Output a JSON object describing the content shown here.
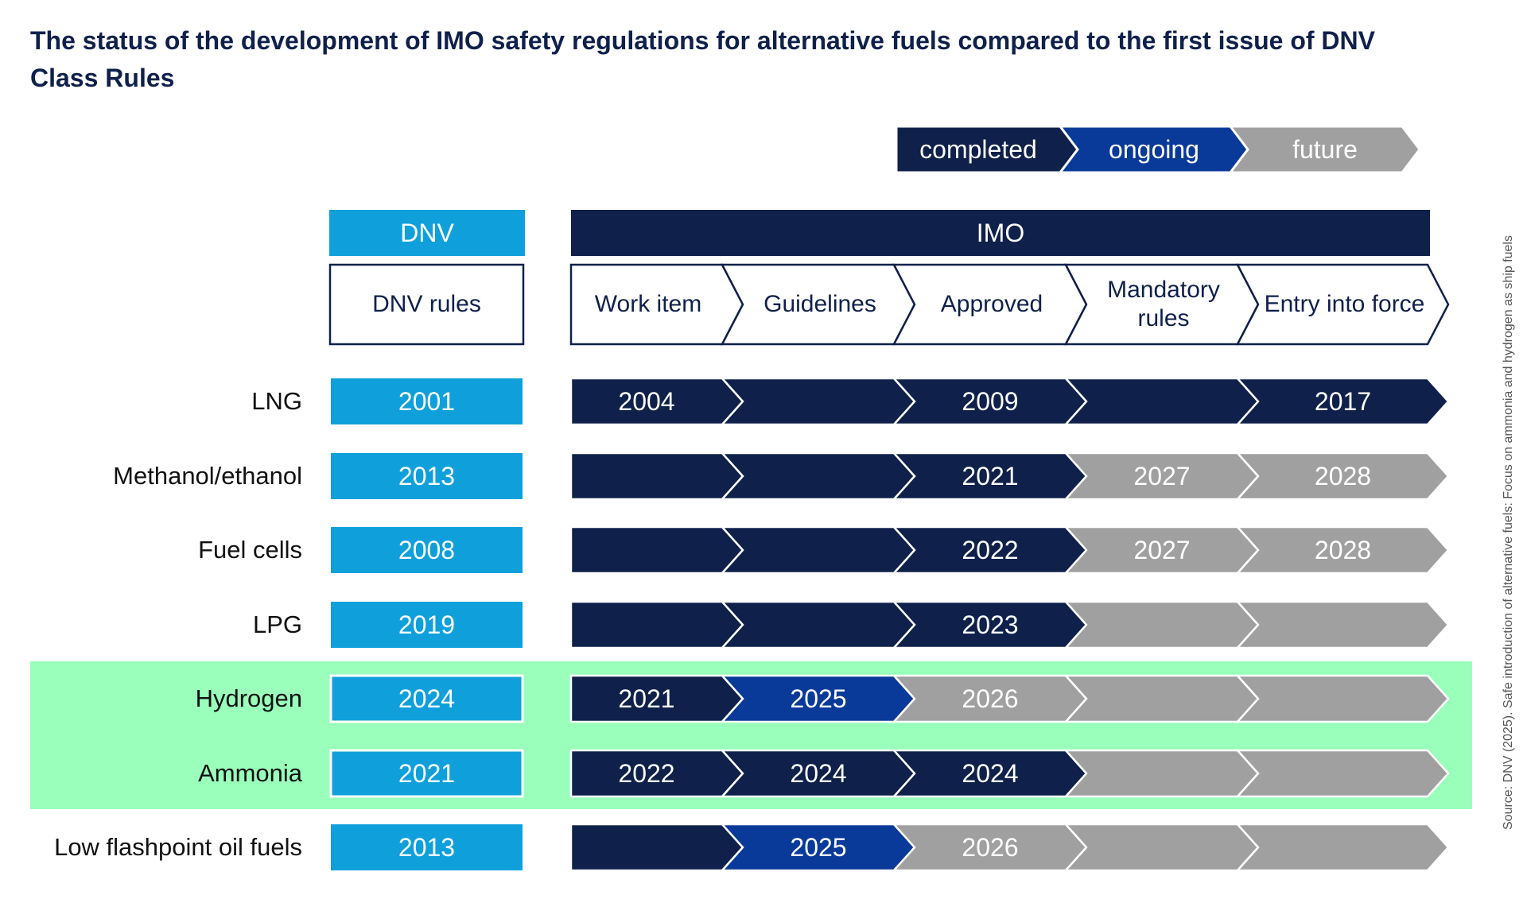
{
  "title": "The status of the development of IMO safety regulations for alternative fuels compared to the first issue of DNV Class Rules",
  "legend": [
    {
      "label": "completed",
      "status": "completed"
    },
    {
      "label": "ongoing",
      "status": "ongoing"
    },
    {
      "label": "future",
      "status": "future"
    }
  ],
  "dnv_header": "DNV",
  "dnv_rules_label": "DNV rules",
  "imo_header": "IMO",
  "imo_steps": [
    "Work item",
    "Guidelines",
    "Approved",
    "Mandatory rules",
    "Entry into force"
  ],
  "colors": {
    "completed": "#0f204b",
    "ongoing": "#0a3a99",
    "future": "#a0a0a0",
    "dnv": "#0fa0dc",
    "highlight": "#99ffbb",
    "title": "#0f204b"
  },
  "rows": [
    {
      "fuel": "LNG",
      "dnv_year": "2001",
      "highlight": false,
      "cells": [
        {
          "year": "2004",
          "status": "completed"
        },
        {
          "year": "",
          "status": "completed"
        },
        {
          "year": "2009",
          "status": "completed"
        },
        {
          "year": "",
          "status": "completed"
        },
        {
          "year": "2017",
          "status": "completed"
        }
      ]
    },
    {
      "fuel": "Methanol/ethanol",
      "dnv_year": "2013",
      "highlight": false,
      "cells": [
        {
          "year": "",
          "status": "completed"
        },
        {
          "year": "",
          "status": "completed"
        },
        {
          "year": "2021",
          "status": "completed"
        },
        {
          "year": "2027",
          "status": "future"
        },
        {
          "year": "2028",
          "status": "future"
        }
      ]
    },
    {
      "fuel": "Fuel cells",
      "dnv_year": "2008",
      "highlight": false,
      "cells": [
        {
          "year": "",
          "status": "completed"
        },
        {
          "year": "",
          "status": "completed"
        },
        {
          "year": "2022",
          "status": "completed"
        },
        {
          "year": "2027",
          "status": "future"
        },
        {
          "year": "2028",
          "status": "future"
        }
      ]
    },
    {
      "fuel": "LPG",
      "dnv_year": "2019",
      "highlight": false,
      "cells": [
        {
          "year": "",
          "status": "completed"
        },
        {
          "year": "",
          "status": "completed"
        },
        {
          "year": "2023",
          "status": "completed"
        },
        {
          "year": "",
          "status": "future"
        },
        {
          "year": "",
          "status": "future"
        }
      ]
    },
    {
      "fuel": "Hydrogen",
      "dnv_year": "2024",
      "highlight": true,
      "cells": [
        {
          "year": "2021",
          "status": "completed"
        },
        {
          "year": "2025",
          "status": "ongoing"
        },
        {
          "year": "2026",
          "status": "future"
        },
        {
          "year": "",
          "status": "future"
        },
        {
          "year": "",
          "status": "future"
        }
      ]
    },
    {
      "fuel": "Ammonia",
      "dnv_year": "2021",
      "highlight": true,
      "cells": [
        {
          "year": "2022",
          "status": "completed"
        },
        {
          "year": "2024",
          "status": "completed"
        },
        {
          "year": "2024",
          "status": "completed"
        },
        {
          "year": "",
          "status": "future"
        },
        {
          "year": "",
          "status": "future"
        }
      ]
    },
    {
      "fuel": "Low flashpoint oil fuels",
      "dnv_year": "2013",
      "highlight": false,
      "cells": [
        {
          "year": "",
          "status": "completed"
        },
        {
          "year": "2025",
          "status": "ongoing"
        },
        {
          "year": "2026",
          "status": "future"
        },
        {
          "year": "",
          "status": "future"
        },
        {
          "year": "",
          "status": "future"
        }
      ]
    }
  ],
  "source": "Source: DNV (2025). Safe introduction of alternative fuels: Focus on ammonia and hydrogen as ship fuels"
}
